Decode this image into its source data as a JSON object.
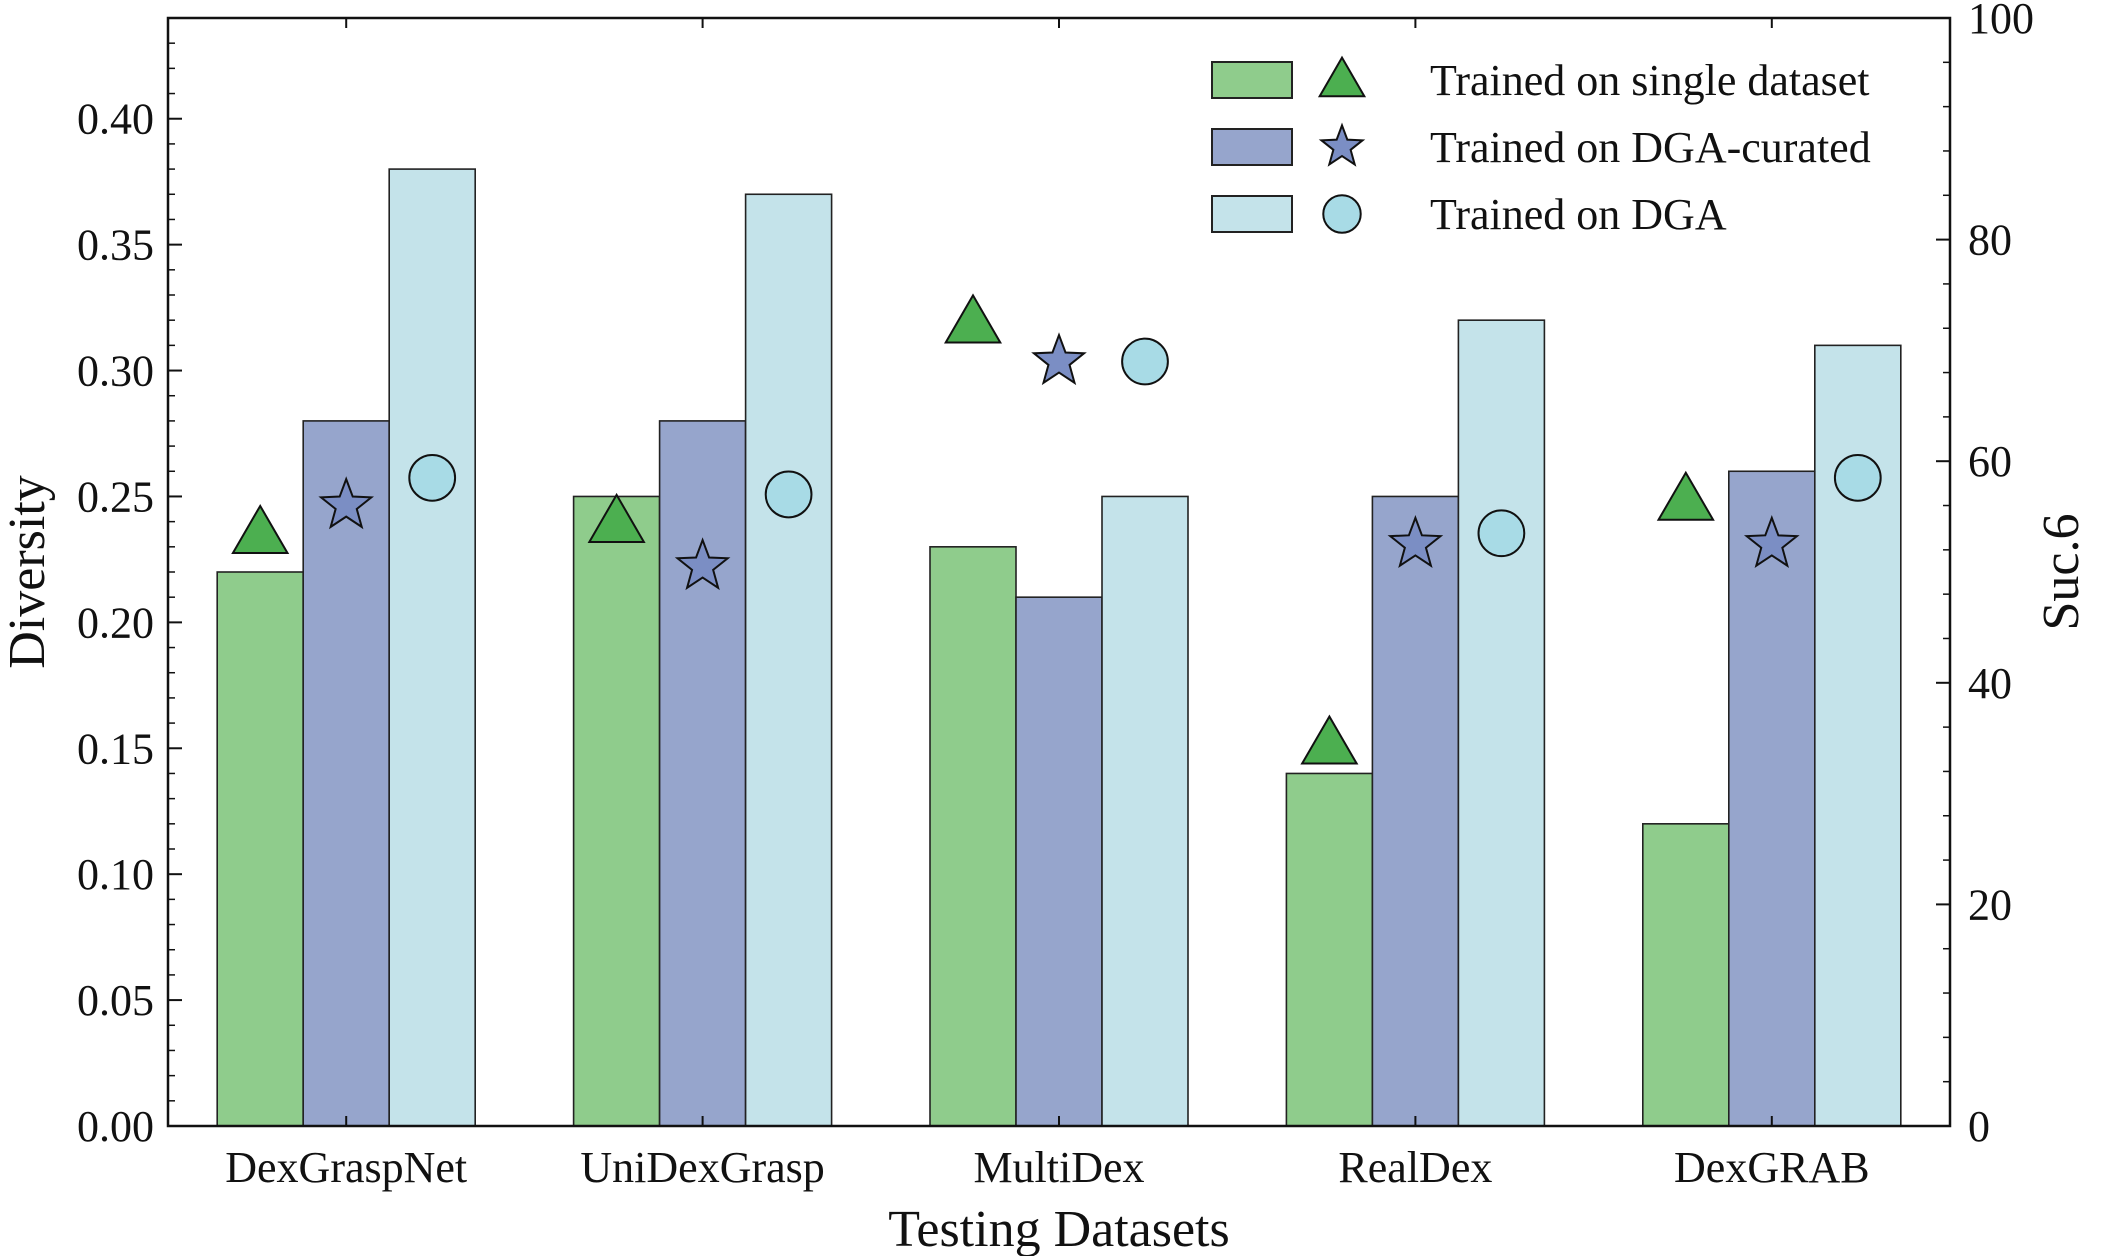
{
  "chart_data": {
    "type": "bar",
    "title": "",
    "xlabel": "Testing Datasets",
    "ylabel": "Diversity",
    "y2label": "Suc.6",
    "categories": [
      "DexGraspNet",
      "UniDexGrasp",
      "MultiDex",
      "RealDex",
      "DexGRAB"
    ],
    "ylim": [
      0,
      0.44
    ],
    "y2lim": [
      0,
      100
    ],
    "yticks": [
      "0.00",
      "0.05",
      "0.10",
      "0.15",
      "0.20",
      "0.25",
      "0.30",
      "0.35",
      "0.40"
    ],
    "y2ticks": [
      "0",
      "20",
      "40",
      "60",
      "80",
      "100"
    ],
    "grid": false,
    "legend_position": "top-right",
    "series": [
      {
        "name": "Trained on single dataset",
        "bar_color": "#8fcc8c",
        "marker": "triangle",
        "marker_color": "#4caf50",
        "diversity": [
          0.22,
          0.25,
          0.23,
          0.14,
          0.12
        ],
        "success": [
          53.5,
          54.5,
          72.5,
          34.5,
          56.5
        ]
      },
      {
        "name": "Trained on DGA-curated",
        "bar_color": "#96a5cc",
        "marker": "star",
        "marker_color": "#7b8ec4",
        "diversity": [
          0.28,
          0.28,
          0.21,
          0.25,
          0.26
        ],
        "success": [
          56,
          50.5,
          69,
          52.5,
          52.5
        ]
      },
      {
        "name": "Trained on DGA",
        "bar_color": "#c4e3ea",
        "marker": "circle",
        "marker_color": "#a8dbe6",
        "diversity": [
          0.38,
          0.37,
          0.25,
          0.32,
          0.31
        ],
        "success": [
          58.5,
          57,
          69,
          53.5,
          58.5
        ]
      }
    ]
  }
}
